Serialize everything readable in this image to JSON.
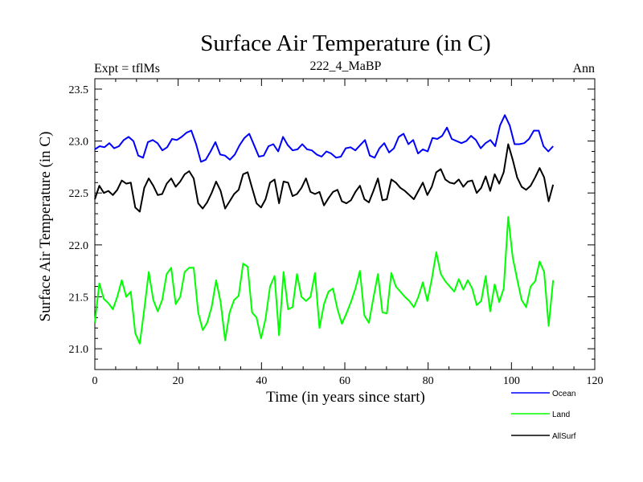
{
  "chart_data": {
    "type": "line",
    "title": "Surface Air Temperature (in C)",
    "subtitle": "222_4_MaBP",
    "left_note": "Expt = tflMs",
    "right_note": "Ann",
    "xlabel": "Time (in years since start)",
    "ylabel": "Surface Air Temperature (in C)",
    "xlim": [
      0,
      120
    ],
    "ylim": [
      20.8,
      23.6
    ],
    "xticks": [
      0,
      20,
      40,
      60,
      80,
      100,
      120
    ],
    "xtick_labels": [
      "0",
      "20",
      "40",
      "60",
      "80",
      "100",
      "120"
    ],
    "yticks": [
      21.0,
      21.5,
      22.0,
      22.5,
      23.0,
      23.5
    ],
    "ytick_labels": [
      "21.0",
      "21.5",
      "22.0",
      "22.5",
      "23.0",
      "23.5"
    ],
    "grid": false,
    "legend_position": "bottom-right",
    "series": [
      {
        "name": "Ocean",
        "color": "#0000ff",
        "values": [
          22.92,
          22.95,
          22.94,
          22.98,
          22.93,
          22.95,
          23.01,
          23.04,
          23.0,
          22.86,
          22.84,
          22.99,
          23.01,
          22.98,
          22.91,
          22.94,
          23.02,
          23.01,
          23.04,
          23.08,
          23.1,
          22.97,
          22.8,
          22.82,
          22.9,
          22.99,
          22.87,
          22.86,
          22.82,
          22.87,
          22.96,
          23.03,
          23.07,
          22.96,
          22.85,
          22.86,
          22.95,
          22.97,
          22.9,
          23.04,
          22.96,
          22.91,
          22.92,
          22.97,
          22.92,
          22.91,
          22.87,
          22.85,
          22.9,
          22.88,
          22.84,
          22.85,
          22.93,
          22.94,
          22.91,
          22.96,
          23.01,
          22.86,
          22.84,
          22.93,
          22.98,
          22.89,
          22.93,
          23.04,
          23.07,
          22.97,
          23.01,
          22.88,
          22.92,
          22.9,
          23.03,
          23.02,
          23.05,
          23.13,
          23.02,
          23.0,
          22.98,
          23.0,
          23.05,
          23.01,
          22.93,
          22.98,
          23.01,
          22.95,
          23.15,
          23.25,
          23.15,
          22.97,
          22.97,
          22.98,
          23.02,
          23.1,
          23.1,
          22.95,
          22.9,
          22.95
        ]
      },
      {
        "name": "Land",
        "color": "#00ff00",
        "values": [
          21.25,
          21.63,
          21.48,
          21.44,
          21.38,
          21.5,
          21.66,
          21.5,
          21.55,
          21.15,
          21.05,
          21.38,
          21.74,
          21.47,
          21.36,
          21.47,
          21.72,
          21.78,
          21.43,
          21.5,
          21.74,
          21.78,
          21.78,
          21.35,
          21.18,
          21.25,
          21.4,
          21.66,
          21.45,
          21.08,
          21.35,
          21.47,
          21.51,
          21.82,
          21.79,
          21.35,
          21.3,
          21.1,
          21.29,
          21.6,
          21.7,
          21.13,
          21.74,
          21.38,
          21.4,
          21.72,
          21.5,
          21.46,
          21.5,
          21.73,
          21.2,
          21.43,
          21.55,
          21.58,
          21.38,
          21.24,
          21.34,
          21.45,
          21.58,
          21.75,
          21.32,
          21.25,
          21.49,
          21.72,
          21.35,
          21.34,
          21.73,
          21.6,
          21.55,
          21.5,
          21.46,
          21.4,
          21.5,
          21.64,
          21.46,
          21.67,
          21.93,
          21.72,
          21.65,
          21.6,
          21.55,
          21.67,
          21.57,
          21.66,
          21.58,
          21.42,
          21.46,
          21.7,
          21.36,
          21.62,
          21.45,
          21.58,
          22.27,
          21.88,
          21.67,
          21.47,
          21.4,
          21.6,
          21.65,
          21.84,
          21.74,
          21.22,
          21.66
        ]
      },
      {
        "name": "AllSurf",
        "color": "#000000",
        "values": [
          22.44,
          22.57,
          22.5,
          22.52,
          22.48,
          22.53,
          22.62,
          22.59,
          22.6,
          22.36,
          22.32,
          22.55,
          22.64,
          22.57,
          22.48,
          22.49,
          22.59,
          22.64,
          22.56,
          22.61,
          22.68,
          22.71,
          22.64,
          22.4,
          22.35,
          22.41,
          22.5,
          22.61,
          22.52,
          22.35,
          22.42,
          22.49,
          22.53,
          22.68,
          22.7,
          22.55,
          22.4,
          22.36,
          22.44,
          22.6,
          22.63,
          22.4,
          22.61,
          22.6,
          22.47,
          22.49,
          22.55,
          22.64,
          22.51,
          22.49,
          22.51,
          22.38,
          22.45,
          22.51,
          22.53,
          22.42,
          22.4,
          22.43,
          22.51,
          22.57,
          22.44,
          22.41,
          22.52,
          22.64,
          22.43,
          22.44,
          22.63,
          22.6,
          22.55,
          22.52,
          22.48,
          22.44,
          22.52,
          22.6,
          22.48,
          22.56,
          22.7,
          22.73,
          22.63,
          22.6,
          22.59,
          22.63,
          22.56,
          22.61,
          22.62,
          22.5,
          22.55,
          22.66,
          22.52,
          22.68,
          22.59,
          22.7,
          22.97,
          22.82,
          22.65,
          22.56,
          22.53,
          22.57,
          22.65,
          22.74,
          22.65,
          22.42,
          22.58
        ]
      }
    ]
  }
}
